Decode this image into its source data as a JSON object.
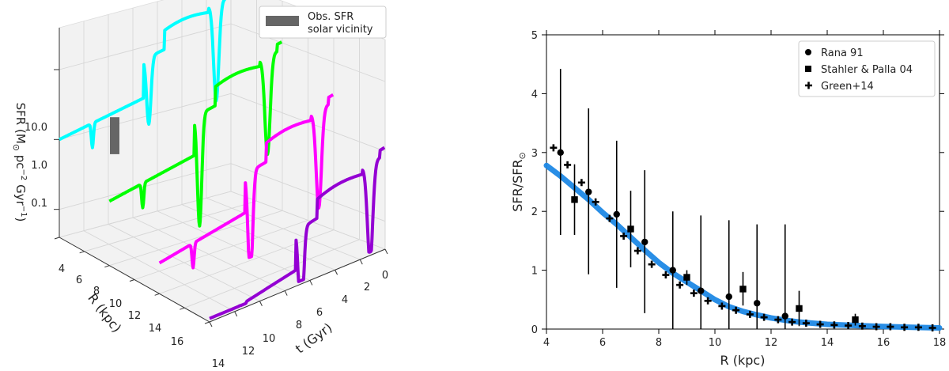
{
  "chart_data": [
    {
      "type": "line",
      "projection": "3d",
      "xlabel": "t (Gyr)",
      "ylabel": "R (kpc)",
      "zlabel": "SFR (M$_\\odot$ pc$^{-2}$ Gyr$^{-1}$)",
      "zlabel_parts": {
        "a": "SFR (M",
        "b": "⊙",
        "c": " pc",
        "d": "−2",
        "e": " Gyr",
        "f": "−1",
        "g": ")"
      },
      "x_ticks": [
        "0",
        "2",
        "4",
        "6",
        "8",
        "10",
        "12",
        "14"
      ],
      "y_ticks": [
        "4",
        "6",
        "8",
        "10",
        "12",
        "14",
        "16"
      ],
      "z_ticks": [
        "0.1",
        "1.0",
        "10.0"
      ],
      "z_scale": "log",
      "grid": true,
      "legend": {
        "position": "top-right",
        "entries": [
          "Obs. SFR",
          "solar vicinity"
        ]
      },
      "series": [
        {
          "R": 4,
          "color": "#00ffff"
        },
        {
          "R": 8,
          "color": "#00ff00"
        },
        {
          "R": 12,
          "color": "#ff00ff"
        },
        {
          "R": 16,
          "color": "#9400d3"
        }
      ],
      "observation": {
        "R": 8,
        "t": 14,
        "sfr_range": [
          0.8,
          3.0
        ],
        "color": "#666666"
      }
    },
    {
      "type": "scatter",
      "xlabel": "R (kpc)",
      "ylabel": "SFR/SFR",
      "ylabel_sub": "⊙",
      "xlim": [
        4,
        18
      ],
      "ylim": [
        0,
        5
      ],
      "x_ticks": [
        4,
        6,
        8,
        10,
        12,
        14,
        16,
        18
      ],
      "y_ticks": [
        0,
        1,
        2,
        3,
        4,
        5
      ],
      "legend_position": "top-right",
      "model_curve": {
        "color": "#1e88e5",
        "x": [
          4.0,
          4.5,
          5.0,
          5.5,
          6.0,
          6.5,
          7.0,
          7.5,
          8.0,
          8.5,
          9.0,
          9.5,
          10.0,
          10.5,
          11.0,
          11.5,
          12.0,
          12.5,
          13.0,
          13.5,
          14.0,
          15.0,
          16.0,
          17.0,
          18.0
        ],
        "y": [
          2.78,
          2.6,
          2.4,
          2.2,
          1.98,
          1.78,
          1.56,
          1.34,
          1.13,
          0.95,
          0.8,
          0.65,
          0.5,
          0.38,
          0.3,
          0.24,
          0.19,
          0.15,
          0.12,
          0.1,
          0.08,
          0.06,
          0.045,
          0.03,
          0.02
        ]
      },
      "series": [
        {
          "name": "Rana 91",
          "marker": "circle",
          "points": [
            {
              "x": 4.5,
              "y": 3.0,
              "lo": 1.6,
              "hi": 4.42
            },
            {
              "x": 5.5,
              "y": 2.33,
              "lo": 0.93,
              "hi": 3.75
            },
            {
              "x": 6.5,
              "y": 1.95,
              "lo": 0.7,
              "hi": 3.2
            },
            {
              "x": 7.5,
              "y": 1.48,
              "lo": 0.27,
              "hi": 2.7
            },
            {
              "x": 8.5,
              "y": 1.0,
              "lo": 0.0,
              "hi": 2.0
            },
            {
              "x": 9.5,
              "y": 0.65,
              "lo": 0.0,
              "hi": 1.93
            },
            {
              "x": 10.5,
              "y": 0.55,
              "lo": 0.0,
              "hi": 1.85
            },
            {
              "x": 11.5,
              "y": 0.44,
              "lo": 0.0,
              "hi": 1.78
            },
            {
              "x": 12.5,
              "y": 0.22,
              "lo": 0.0,
              "hi": 1.78
            }
          ]
        },
        {
          "name": "Stahler & Palla 04",
          "marker": "square",
          "points": [
            {
              "x": 5.0,
              "y": 2.2,
              "lo": 1.6,
              "hi": 2.8
            },
            {
              "x": 7.0,
              "y": 1.7,
              "lo": 1.05,
              "hi": 2.35
            },
            {
              "x": 9.0,
              "y": 0.88,
              "lo": 0.75,
              "hi": 1.0
            },
            {
              "x": 11.0,
              "y": 0.68,
              "lo": 0.4,
              "hi": 0.97
            },
            {
              "x": 13.0,
              "y": 0.35,
              "lo": 0.05,
              "hi": 0.65
            },
            {
              "x": 15.0,
              "y": 0.16,
              "lo": 0.06,
              "hi": 0.26
            }
          ]
        },
        {
          "name": "Green+14",
          "marker": "plus",
          "points": [
            {
              "x": 4.25,
              "y": 3.08
            },
            {
              "x": 4.75,
              "y": 2.79
            },
            {
              "x": 5.25,
              "y": 2.49
            },
            {
              "x": 5.75,
              "y": 2.16
            },
            {
              "x": 6.25,
              "y": 1.88
            },
            {
              "x": 6.75,
              "y": 1.58
            },
            {
              "x": 7.25,
              "y": 1.33
            },
            {
              "x": 7.75,
              "y": 1.1
            },
            {
              "x": 8.25,
              "y": 0.92
            },
            {
              "x": 8.75,
              "y": 0.75
            },
            {
              "x": 9.25,
              "y": 0.61
            },
            {
              "x": 9.75,
              "y": 0.48
            },
            {
              "x": 10.25,
              "y": 0.39
            },
            {
              "x": 10.75,
              "y": 0.32
            },
            {
              "x": 11.25,
              "y": 0.25
            },
            {
              "x": 11.75,
              "y": 0.2
            },
            {
              "x": 12.25,
              "y": 0.16
            },
            {
              "x": 12.75,
              "y": 0.12
            },
            {
              "x": 13.25,
              "y": 0.1
            },
            {
              "x": 13.75,
              "y": 0.08
            },
            {
              "x": 14.25,
              "y": 0.07
            },
            {
              "x": 14.75,
              "y": 0.06
            },
            {
              "x": 15.25,
              "y": 0.05
            },
            {
              "x": 15.75,
              "y": 0.04
            },
            {
              "x": 16.25,
              "y": 0.04
            },
            {
              "x": 16.75,
              "y": 0.03
            },
            {
              "x": 17.25,
              "y": 0.03
            },
            {
              "x": 17.75,
              "y": 0.02
            }
          ]
        }
      ]
    }
  ]
}
